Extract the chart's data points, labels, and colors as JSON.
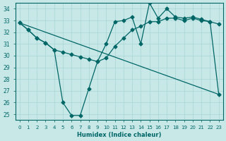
{
  "xlabel": "Humidex (Indice chaleur)",
  "bg_color": "#c8e8e8",
  "line_color": "#006666",
  "grid_color": "#a8d4d4",
  "xlim": [
    -0.5,
    23.5
  ],
  "ylim": [
    24.5,
    34.5
  ],
  "xticks": [
    0,
    1,
    2,
    3,
    4,
    5,
    6,
    7,
    8,
    9,
    10,
    11,
    12,
    13,
    14,
    15,
    16,
    17,
    18,
    19,
    20,
    21,
    22,
    23
  ],
  "yticks": [
    25,
    26,
    27,
    28,
    29,
    30,
    31,
    32,
    33,
    34
  ],
  "curve1_x": [
    0,
    1,
    2,
    3,
    4,
    5,
    6,
    7,
    8,
    9,
    10,
    11,
    12,
    13,
    14,
    15,
    16,
    17,
    18,
    19,
    20,
    21,
    22,
    23
  ],
  "curve1_y": [
    32.8,
    32.2,
    31.5,
    31.1,
    30.5,
    26.0,
    24.9,
    24.9,
    27.2,
    29.5,
    31.0,
    32.9,
    33.0,
    33.3,
    31.0,
    34.5,
    33.2,
    34.0,
    33.3,
    33.2,
    33.3,
    33.1,
    32.9,
    26.7
  ],
  "curve2_x": [
    0,
    1,
    2,
    3,
    4,
    5,
    6,
    7,
    8,
    9,
    10,
    11,
    12,
    13,
    14,
    15,
    16,
    17,
    18,
    19,
    20,
    21,
    22,
    23
  ],
  "curve2_y": [
    32.8,
    32.2,
    31.5,
    31.1,
    30.5,
    30.3,
    30.1,
    29.9,
    29.7,
    29.5,
    29.8,
    30.8,
    31.5,
    32.2,
    32.5,
    32.9,
    32.9,
    33.2,
    33.2,
    33.0,
    33.2,
    33.0,
    32.9,
    32.7
  ],
  "curve3_x": [
    0,
    23
  ],
  "curve3_y": [
    32.8,
    26.7
  ],
  "marker": "D",
  "marker_size": 2.5,
  "linewidth": 0.9
}
